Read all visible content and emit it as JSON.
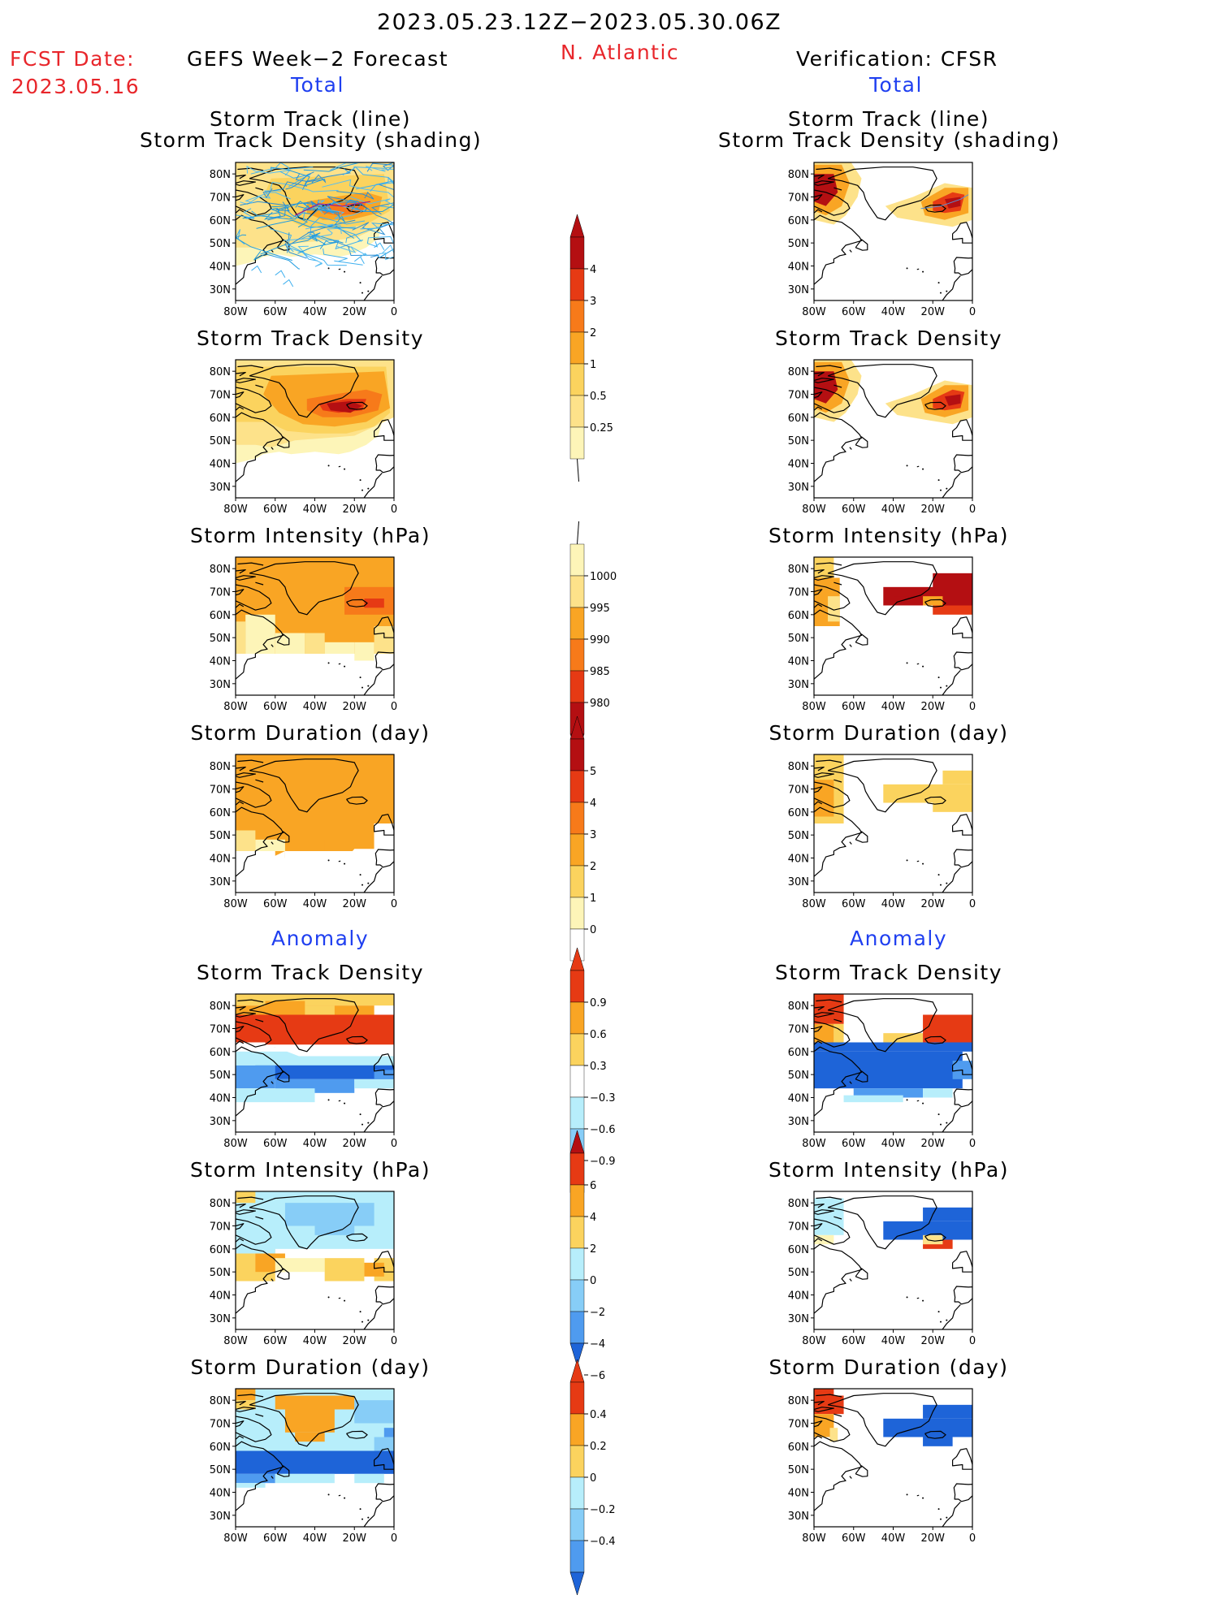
{
  "header": {
    "date_range": "2023.05.23.12Z−2023.05.30.06Z",
    "fcst_label": "FCST Date:",
    "fcst_date": "2023.05.16",
    "left_title": "GEFS Week−2 Forecast",
    "region": "N. Atlantic",
    "right_title": "Verification: CFSR",
    "total_label": "Total",
    "anomaly_label": "Anomaly"
  },
  "panel_titles": {
    "track_line": "Storm Track (line)",
    "track_shading": "Storm Track Density (shading)",
    "density": "Storm Track Density",
    "intensity": "Storm Intensity (hPa)",
    "duration": "Storm Duration (day)"
  },
  "axes": {
    "lat_labels": [
      "80N",
      "70N",
      "60N",
      "50N",
      "40N",
      "30N"
    ],
    "lon_labels": [
      "80W",
      "60W",
      "40W",
      "20W",
      "0"
    ]
  },
  "colorbars": {
    "density": [
      "0.25",
      "0.5",
      "1",
      "2",
      "3",
      "4"
    ],
    "intensity": [
      "1000",
      "995",
      "990",
      "985",
      "980"
    ],
    "duration": [
      "0",
      "1",
      "2",
      "3",
      "4",
      "5"
    ],
    "density_anom": [
      "0.9",
      "0.6",
      "0.3",
      "−0.3",
      "−0.6",
      "−0.9"
    ],
    "intensity_anom": [
      "6",
      "4",
      "2",
      "0",
      "−2",
      "−4",
      "−6"
    ],
    "duration_anom": [
      "0.4",
      "0.2",
      "0",
      "−0.2",
      "−0.4"
    ]
  },
  "colors": {
    "title_red": "#e8262b",
    "title_blue": "#1f3ff0",
    "pale": "#fdf5b8",
    "light": "#fde28a",
    "yellow": "#fbd35e",
    "orange": "#f9a524",
    "dorange": "#f77a1a",
    "red": "#e63a14",
    "dred": "#b40f12",
    "maroon": "#7a0b0b",
    "lblue": "#b7eefb",
    "mblue": "#87cdf7",
    "blue": "#4f9bef",
    "dblue": "#1e64d8"
  }
}
